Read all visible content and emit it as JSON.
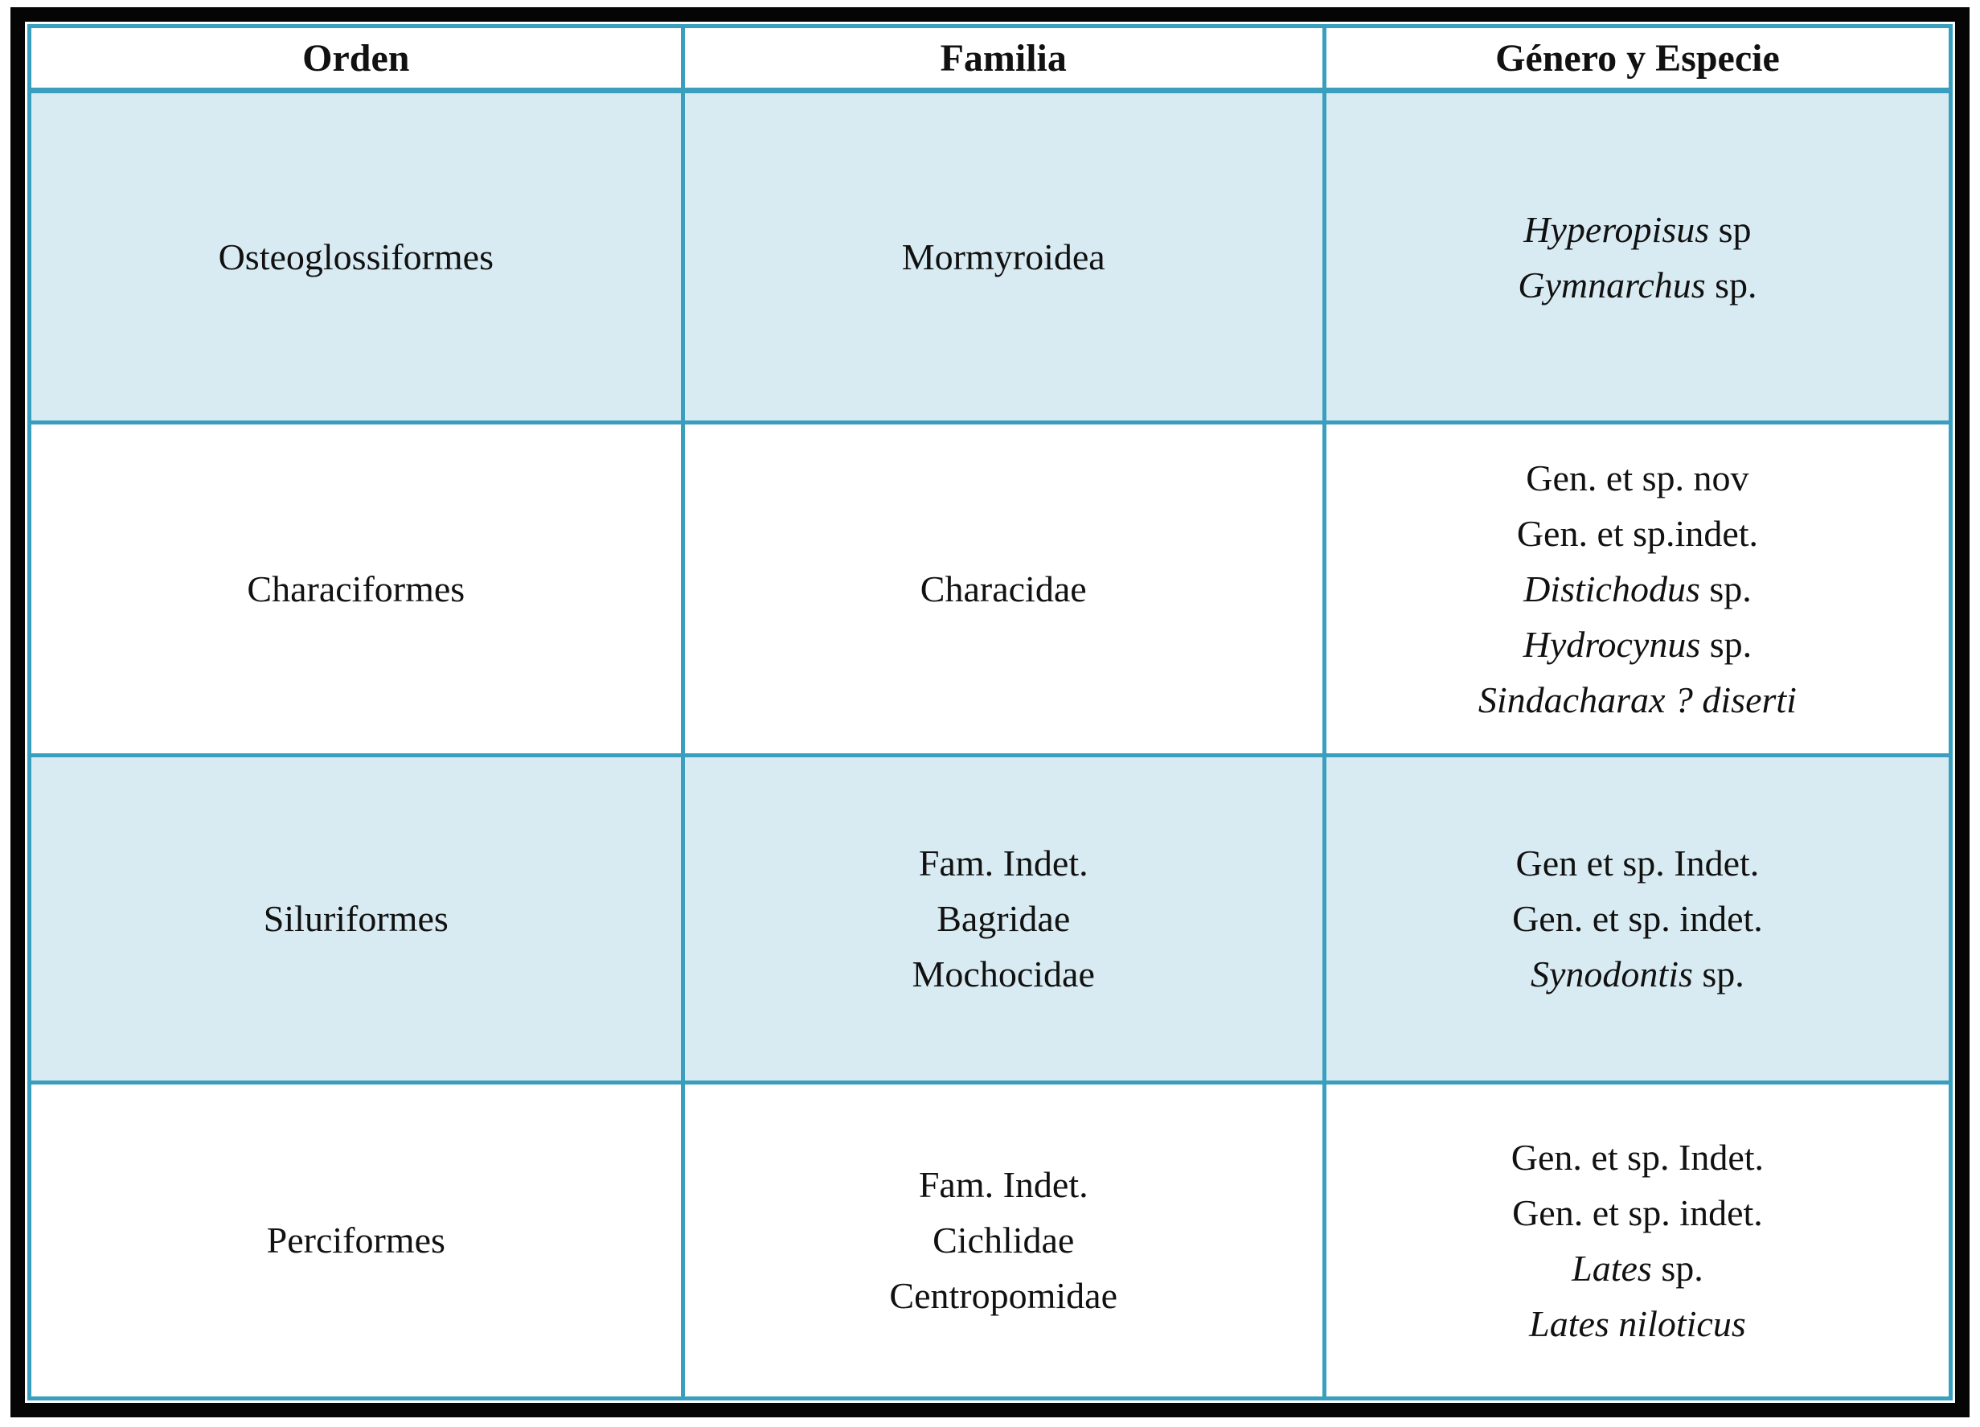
{
  "page": {
    "frame_color": "#050505",
    "grid_color": "#3a9fbe",
    "shaded_row_color": "#d9ebf2",
    "background_color": "#ffffff",
    "text_color": "#111111"
  },
  "table": {
    "headers": [
      {
        "label": "Orden"
      },
      {
        "label": "Familia"
      },
      {
        "label": "Género y Especie"
      }
    ],
    "rows": [
      {
        "shaded": true,
        "orden": "Osteoglossiformes",
        "familia_lines": [
          "Mormyroidea"
        ],
        "especie_lines": [
          [
            {
              "text": "Hyperopisus",
              "italic": true
            },
            {
              "text": " sp",
              "italic": false
            }
          ],
          [
            {
              "text": "Gymnarchus",
              "italic": true
            },
            {
              "text": " sp.",
              "italic": false
            }
          ]
        ]
      },
      {
        "shaded": false,
        "orden": "Characiformes",
        "familia_lines": [
          "Characidae"
        ],
        "especie_lines": [
          [
            {
              "text": "Gen. et sp. nov",
              "italic": false
            }
          ],
          [
            {
              "text": "Gen. et sp.indet.",
              "italic": false
            }
          ],
          [
            {
              "text": "Distichodus",
              "italic": true
            },
            {
              "text": " sp.",
              "italic": false
            }
          ],
          [
            {
              "text": "Hydrocynus",
              "italic": true
            },
            {
              "text": " sp.",
              "italic": false
            }
          ],
          [
            {
              "text": "Sindacharax ? diserti",
              "italic": true
            }
          ]
        ]
      },
      {
        "shaded": true,
        "orden": "Siluriformes",
        "familia_lines": [
          "Fam. Indet.",
          "Bagridae",
          "Mochocidae"
        ],
        "especie_lines": [
          [
            {
              "text": "Gen et sp. Indet.",
              "italic": false
            }
          ],
          [
            {
              "text": "Gen. et sp. indet.",
              "italic": false
            }
          ],
          [
            {
              "text": "Synodontis",
              "italic": true
            },
            {
              "text": " sp.",
              "italic": false
            }
          ]
        ]
      },
      {
        "shaded": false,
        "orden": "Perciformes",
        "familia_lines": [
          "Fam. Indet.",
          "Cichlidae",
          "Centropomidae"
        ],
        "especie_lines": [
          [
            {
              "text": "Gen. et sp. Indet.",
              "italic": false
            }
          ],
          [
            {
              "text": "Gen. et sp. indet.",
              "italic": false
            }
          ],
          [
            {
              "text": "Lates",
              "italic": true
            },
            {
              "text": " sp.",
              "italic": false
            }
          ],
          [
            {
              "text": "Lates niloticus",
              "italic": true
            }
          ]
        ]
      }
    ]
  }
}
